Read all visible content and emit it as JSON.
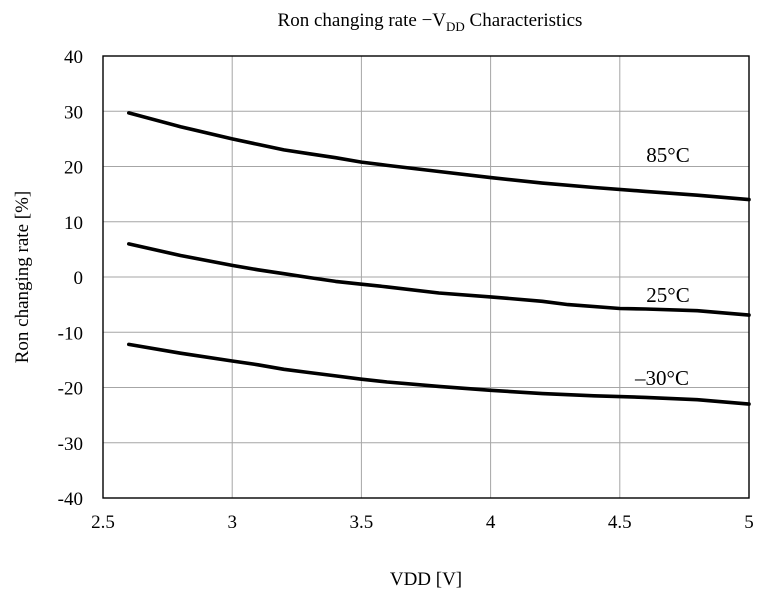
{
  "chart_data": {
    "type": "line",
    "title": {
      "main": "Ron changing rate −V",
      "sub": "DD",
      "rest": " Characteristics"
    },
    "xlabel": "VDD [V]",
    "ylabel": "Ron changing rate [%]",
    "xlim": [
      2.5,
      5
    ],
    "ylim": [
      -40,
      40
    ],
    "xticks": [
      "2.5",
      "3",
      "3.5",
      "4",
      "4.5",
      "5"
    ],
    "yticks": [
      "40",
      "30",
      "20",
      "10",
      "0",
      "-10",
      "-20",
      "-30",
      "-40"
    ],
    "grid": true,
    "series": [
      {
        "name": "85°C",
        "x": [
          2.6,
          2.8,
          3.0,
          3.1,
          3.2,
          3.3,
          3.4,
          3.5,
          3.6,
          3.8,
          4.0,
          4.2,
          4.4,
          4.6,
          4.8,
          5.0
        ],
        "y": [
          29.7,
          27.2,
          25.0,
          24.0,
          23.0,
          22.3,
          21.6,
          20.8,
          20.2,
          19.1,
          18.0,
          17.0,
          16.2,
          15.5,
          14.8,
          14.0
        ]
      },
      {
        "name": "25°C",
        "x": [
          2.6,
          2.8,
          3.0,
          3.1,
          3.2,
          3.3,
          3.4,
          3.5,
          3.6,
          3.8,
          4.0,
          4.2,
          4.3,
          4.5,
          4.6,
          4.8,
          5.0
        ],
        "y": [
          6.0,
          3.9,
          2.1,
          1.3,
          0.6,
          -0.1,
          -0.8,
          -1.3,
          -1.8,
          -2.9,
          -3.6,
          -4.4,
          -5.0,
          -5.7,
          -5.8,
          -6.1,
          -6.9
        ]
      },
      {
        "name": "–30°C",
        "x": [
          2.6,
          2.8,
          3.0,
          3.1,
          3.2,
          3.3,
          3.4,
          3.5,
          3.6,
          3.8,
          4.0,
          4.2,
          4.4,
          4.6,
          4.8,
          5.0
        ],
        "y": [
          -12.2,
          -13.8,
          -15.2,
          -15.9,
          -16.7,
          -17.3,
          -17.9,
          -18.5,
          -19.0,
          -19.8,
          -20.5,
          -21.1,
          -21.5,
          -21.8,
          -22.2,
          -23.0
        ]
      }
    ]
  }
}
